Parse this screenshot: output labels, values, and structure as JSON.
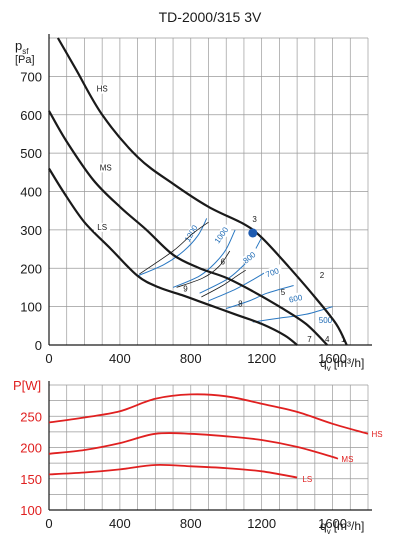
{
  "title": "TD-2000/315 3V",
  "chart_data": [
    {
      "type": "line",
      "ylabel_main": "p",
      "ylabel_sub": "sf",
      "ylabel_unit": "[Pa]",
      "xlabel_main": "q",
      "xlabel_sub": "v",
      "xlabel_unit": "[m³/h]",
      "xlim": [
        0,
        1800
      ],
      "ylim": [
        0,
        800
      ],
      "x_ticks": [
        0,
        400,
        800,
        1200,
        1600
      ],
      "y_ticks": [
        0,
        100,
        200,
        300,
        400,
        500,
        600,
        700
      ],
      "grid": true,
      "fan_curves": [
        {
          "name": "HS",
          "color": "#1a1a1a",
          "points": [
            [
              50,
              800
            ],
            [
              150,
              720
            ],
            [
              300,
              600
            ],
            [
              500,
              490
            ],
            [
              700,
              420
            ],
            [
              900,
              360
            ],
            [
              1100,
              315
            ],
            [
              1200,
              280
            ],
            [
              1350,
              205
            ],
            [
              1500,
              125
            ],
            [
              1620,
              55
            ],
            [
              1680,
              0
            ]
          ]
        },
        {
          "name": "MS",
          "color": "#1a1a1a",
          "points": [
            [
              0,
              610
            ],
            [
              100,
              530
            ],
            [
              250,
              430
            ],
            [
              400,
              360
            ],
            [
              550,
              300
            ],
            [
              700,
              235
            ],
            [
              850,
              200
            ],
            [
              1000,
              175
            ],
            [
              1150,
              140
            ],
            [
              1300,
              100
            ],
            [
              1450,
              55
            ],
            [
              1570,
              0
            ]
          ]
        },
        {
          "name": "LS",
          "color": "#1a1a1a",
          "points": [
            [
              0,
              460
            ],
            [
              80,
              400
            ],
            [
              200,
              320
            ],
            [
              350,
              250
            ],
            [
              500,
              180
            ],
            [
              620,
              150
            ],
            [
              750,
              130
            ],
            [
              900,
              105
            ],
            [
              1050,
              80
            ],
            [
              1200,
              55
            ],
            [
              1330,
              25
            ],
            [
              1400,
              0
            ]
          ]
        }
      ],
      "system_curves": [
        {
          "label": "1200",
          "points": [
            [
              500,
              180
            ],
            [
              650,
              210
            ],
            [
              760,
              245
            ],
            [
              840,
              285
            ],
            [
              890,
              330
            ]
          ]
        },
        {
          "label": "1000",
          "points": [
            [
              700,
              150
            ],
            [
              850,
              180
            ],
            [
              940,
              215
            ],
            [
              1000,
              250
            ],
            [
              1050,
              300
            ]
          ]
        },
        {
          "label": "800",
          "points": [
            [
              850,
              135
            ],
            [
              1000,
              170
            ],
            [
              1080,
              200
            ],
            [
              1140,
              230
            ],
            [
              1200,
              280
            ]
          ]
        },
        {
          "label": "700",
          "points": [
            [
              900,
              115
            ],
            [
              1050,
              145
            ],
            [
              1150,
              170
            ],
            [
              1240,
              195
            ]
          ]
        },
        {
          "label": "600",
          "points": [
            [
              1000,
              95
            ],
            [
              1130,
              115
            ],
            [
              1230,
              135
            ],
            [
              1380,
              155
            ]
          ]
        },
        {
          "label": "500",
          "points": [
            [
              1150,
              60
            ],
            [
              1300,
              70
            ],
            [
              1450,
              80
            ],
            [
              1600,
              100
            ]
          ]
        }
      ],
      "system_label_positions": [
        [
          815,
          295
        ],
        [
          985,
          290
        ],
        [
          1140,
          230
        ],
        [
          1265,
          190
        ],
        [
          1395,
          122
        ],
        [
          1560,
          65
        ]
      ],
      "system_label_rotations": [
        -60,
        -55,
        -40,
        -20,
        -12,
        0
      ],
      "cross_curves": [
        [
          [
            510,
            185
          ],
          [
            700,
            245
          ],
          [
            810,
            290
          ],
          [
            900,
            320
          ]
        ],
        [
          [
            720,
            150
          ],
          [
            870,
            175
          ],
          [
            960,
            205
          ],
          [
            1020,
            245
          ]
        ],
        [
          [
            860,
            125
          ],
          [
            980,
            155
          ],
          [
            1060,
            180
          ],
          [
            1110,
            195
          ]
        ]
      ],
      "operating_points": [
        {
          "label": "1",
          "x": 1660,
          "y": 8
        },
        {
          "label": "2",
          "x": 1540,
          "y": 175
        },
        {
          "label": "3",
          "x": 1160,
          "y": 320
        },
        {
          "label": "4",
          "x": 1570,
          "y": 8
        },
        {
          "label": "5",
          "x": 1320,
          "y": 130
        },
        {
          "label": "6",
          "x": 980,
          "y": 210
        },
        {
          "label": "7",
          "x": 1470,
          "y": 8
        },
        {
          "label": "8",
          "x": 1080,
          "y": 100
        },
        {
          "label": "9",
          "x": 770,
          "y": 140
        }
      ],
      "marker": {
        "x": 1150,
        "y": 292,
        "color": "#1e5bb0"
      },
      "curve_label_positions": {
        "HS": [
          300,
          660
        ],
        "MS": [
          320,
          455
        ],
        "LS": [
          300,
          300
        ]
      }
    },
    {
      "type": "line",
      "ylabel_main": "P[W]",
      "xlabel_main": "q",
      "xlabel_sub": "v",
      "xlabel_unit": "[m³/h]",
      "xlim": [
        0,
        1800
      ],
      "ylim": [
        100,
        300
      ],
      "x_ticks": [
        0,
        400,
        800,
        1200,
        1600
      ],
      "y_ticks": [
        100,
        150,
        200,
        250
      ],
      "grid": true,
      "series": [
        {
          "name": "HS",
          "color": "#e02020",
          "points": [
            [
              0,
              240
            ],
            [
              200,
              248
            ],
            [
              400,
              258
            ],
            [
              600,
              278
            ],
            [
              800,
              285
            ],
            [
              1000,
              282
            ],
            [
              1200,
              270
            ],
            [
              1400,
              257
            ],
            [
              1600,
              238
            ],
            [
              1800,
              222
            ]
          ]
        },
        {
          "name": "MS",
          "color": "#e02020",
          "points": [
            [
              0,
              190
            ],
            [
              200,
              196
            ],
            [
              400,
              207
            ],
            [
              600,
              222
            ],
            [
              800,
              222
            ],
            [
              1000,
              218
            ],
            [
              1200,
              212
            ],
            [
              1400,
              201
            ],
            [
              1600,
              185
            ],
            [
              1630,
              182
            ]
          ]
        },
        {
          "name": "LS",
          "color": "#e02020",
          "points": [
            [
              0,
              157
            ],
            [
              200,
              160
            ],
            [
              400,
              165
            ],
            [
              600,
              172
            ],
            [
              800,
              170
            ],
            [
              1000,
              167
            ],
            [
              1200,
              162
            ],
            [
              1400,
              152
            ]
          ]
        }
      ],
      "end_label_positions": {
        "HS": [
          1820,
          222
        ],
        "MS": [
          1650,
          182
        ],
        "LS": [
          1430,
          150
        ]
      }
    }
  ]
}
